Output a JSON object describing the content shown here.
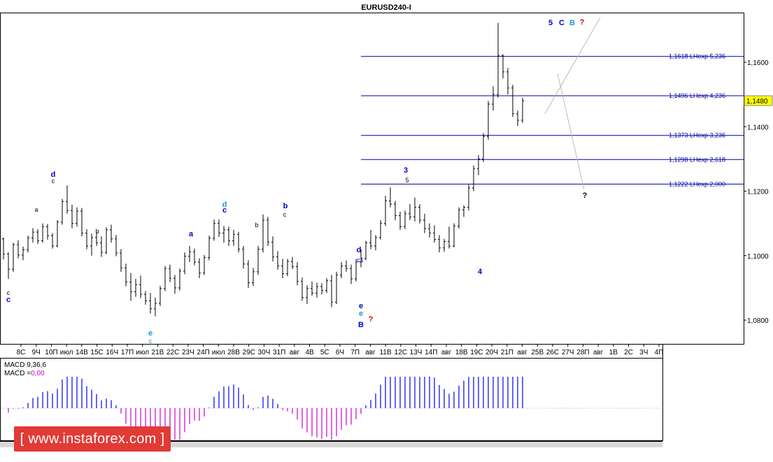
{
  "window": {
    "title": "EURUSD240-I"
  },
  "chart_data": {
    "type": "candlestick",
    "symbol": "EURUSD240-I",
    "price_axis": {
      "ticks": [
        "1,1600",
        "1,1400",
        "1,1200",
        "1,1000",
        "1,0800"
      ],
      "tick_values": [
        1.16,
        1.14,
        1.12,
        1.1,
        1.08
      ],
      "range": [
        1.073,
        1.178
      ]
    },
    "current_price": {
      "label": "1,1480",
      "value": 1.148
    },
    "fib_levels": [
      {
        "value": 1.1618,
        "label": "1,1618 LHexp 5,236"
      },
      {
        "value": 1.1496,
        "label": "1,1496 LHexp 4,236"
      },
      {
        "value": 1.1373,
        "label": "1,1373 LHexp 3,236"
      },
      {
        "value": 1.1298,
        "label": "1,1298 LHexp 2,618"
      },
      {
        "value": 1.1222,
        "label": "1,1222 LHexp 2,000"
      }
    ],
    "time_axis": [
      "8C",
      "9Ч",
      "10П",
      "июл",
      "14В",
      "15С",
      "16Ч",
      "17П",
      "июл",
      "21В",
      "22С",
      "23Ч",
      "24П",
      "июл",
      "28В",
      "29С",
      "30Ч",
      "31П",
      "авг",
      "4В",
      "5С",
      "6Ч",
      "7П",
      "авг",
      "11В",
      "12С",
      "13Ч",
      "14П",
      "авг",
      "18В",
      "19С",
      "20Ч",
      "21П",
      "авг",
      "25В",
      "26С",
      "27Ч",
      "28П",
      "авг",
      "1В",
      "2С",
      "3Ч",
      "4П"
    ],
    "ohlc_bars": [
      {
        "o": 1.1052,
        "h": 1.1056,
        "l": 1.0988,
        "c": 1.1005
      },
      {
        "o": 1.1005,
        "h": 1.101,
        "l": 1.0928,
        "c": 1.0958
      },
      {
        "o": 1.0958,
        "h": 1.104,
        "l": 1.095,
        "c": 1.1034
      },
      {
        "o": 1.1034,
        "h": 1.1048,
        "l": 1.0992,
        "c": 1.1002
      },
      {
        "o": 1.1002,
        "h": 1.1028,
        "l": 1.0986,
        "c": 1.1018
      },
      {
        "o": 1.1018,
        "h": 1.1062,
        "l": 1.101,
        "c": 1.1055
      },
      {
        "o": 1.1055,
        "h": 1.1085,
        "l": 1.104,
        "c": 1.1073
      },
      {
        "o": 1.1073,
        "h": 1.1082,
        "l": 1.1036,
        "c": 1.1046
      },
      {
        "o": 1.1046,
        "h": 1.11,
        "l": 1.104,
        "c": 1.109
      },
      {
        "o": 1.109,
        "h": 1.1098,
        "l": 1.105,
        "c": 1.1062
      },
      {
        "o": 1.1062,
        "h": 1.107,
        "l": 1.1022,
        "c": 1.103
      },
      {
        "o": 1.103,
        "h": 1.111,
        "l": 1.1026,
        "c": 1.1104
      },
      {
        "o": 1.1104,
        "h": 1.1176,
        "l": 1.1096,
        "c": 1.1168
      },
      {
        "o": 1.1168,
        "h": 1.1218,
        "l": 1.113,
        "c": 1.114
      },
      {
        "o": 1.114,
        "h": 1.1158,
        "l": 1.1085,
        "c": 1.11
      },
      {
        "o": 1.11,
        "h": 1.115,
        "l": 1.109,
        "c": 1.1138
      },
      {
        "o": 1.1138,
        "h": 1.1148,
        "l": 1.106,
        "c": 1.107
      },
      {
        "o": 1.107,
        "h": 1.1082,
        "l": 1.102,
        "c": 1.103
      },
      {
        "o": 1.103,
        "h": 1.1068,
        "l": 1.1,
        "c": 1.1056
      },
      {
        "o": 1.1056,
        "h": 1.1074,
        "l": 1.103,
        "c": 1.104
      },
      {
        "o": 1.104,
        "h": 1.106,
        "l": 1.0996,
        "c": 1.101
      },
      {
        "o": 1.101,
        "h": 1.1088,
        "l": 1.1004,
        "c": 1.108
      },
      {
        "o": 1.108,
        "h": 1.1096,
        "l": 1.104,
        "c": 1.1052
      },
      {
        "o": 1.1052,
        "h": 1.1064,
        "l": 1.0998,
        "c": 1.1008
      },
      {
        "o": 1.1008,
        "h": 1.102,
        "l": 1.095,
        "c": 1.0962
      },
      {
        "o": 1.0962,
        "h": 1.0975,
        "l": 1.0905,
        "c": 1.0918
      },
      {
        "o": 1.0918,
        "h": 1.0946,
        "l": 1.086,
        "c": 1.0888
      },
      {
        "o": 1.0888,
        "h": 1.0928,
        "l": 1.0872,
        "c": 1.091
      },
      {
        "o": 1.091,
        "h": 1.0938,
        "l": 1.0868,
        "c": 1.088
      },
      {
        "o": 1.088,
        "h": 1.089,
        "l": 1.0848,
        "c": 1.086
      },
      {
        "o": 1.086,
        "h": 1.0884,
        "l": 1.082,
        "c": 1.0835
      },
      {
        "o": 1.0835,
        "h": 1.087,
        "l": 1.0812,
        "c": 1.0852
      },
      {
        "o": 1.0852,
        "h": 1.0906,
        "l": 1.0844,
        "c": 1.0898
      },
      {
        "o": 1.0898,
        "h": 1.0968,
        "l": 1.089,
        "c": 1.096
      },
      {
        "o": 1.096,
        "h": 1.0972,
        "l": 1.0918,
        "c": 1.093
      },
      {
        "o": 1.093,
        "h": 1.094,
        "l": 1.0882,
        "c": 1.09
      },
      {
        "o": 1.09,
        "h": 1.096,
        "l": 1.0892,
        "c": 1.0952
      },
      {
        "o": 1.0952,
        "h": 1.101,
        "l": 1.0942,
        "c": 1.0998
      },
      {
        "o": 1.0998,
        "h": 1.103,
        "l": 1.098,
        "c": 1.1012
      },
      {
        "o": 1.1012,
        "h": 1.1022,
        "l": 1.097,
        "c": 1.098
      },
      {
        "o": 1.098,
        "h": 1.0992,
        "l": 1.093,
        "c": 1.0946
      },
      {
        "o": 1.0946,
        "h": 1.1002,
        "l": 1.094,
        "c": 1.0994
      },
      {
        "o": 1.0994,
        "h": 1.1062,
        "l": 1.0986,
        "c": 1.1054
      },
      {
        "o": 1.1054,
        "h": 1.1112,
        "l": 1.1046,
        "c": 1.11
      },
      {
        "o": 1.11,
        "h": 1.1112,
        "l": 1.1058,
        "c": 1.107
      },
      {
        "o": 1.107,
        "h": 1.1092,
        "l": 1.104,
        "c": 1.108
      },
      {
        "o": 1.108,
        "h": 1.109,
        "l": 1.103,
        "c": 1.1046
      },
      {
        "o": 1.1046,
        "h": 1.108,
        "l": 1.103,
        "c": 1.1066
      },
      {
        "o": 1.1066,
        "h": 1.1074,
        "l": 1.101,
        "c": 1.102
      },
      {
        "o": 1.102,
        "h": 1.103,
        "l": 1.096,
        "c": 1.0974
      },
      {
        "o": 1.0974,
        "h": 1.0986,
        "l": 1.09,
        "c": 1.0916
      },
      {
        "o": 1.0916,
        "h": 1.0962,
        "l": 1.0906,
        "c": 1.095
      },
      {
        "o": 1.095,
        "h": 1.103,
        "l": 1.094,
        "c": 1.102
      },
      {
        "o": 1.102,
        "h": 1.1128,
        "l": 1.101,
        "c": 1.111
      },
      {
        "o": 1.111,
        "h": 1.112,
        "l": 1.103,
        "c": 1.1042
      },
      {
        "o": 1.1042,
        "h": 1.106,
        "l": 1.0982,
        "c": 1.0996
      },
      {
        "o": 1.0996,
        "h": 1.1014,
        "l": 1.0956,
        "c": 1.0968
      },
      {
        "o": 1.0968,
        "h": 1.099,
        "l": 1.093,
        "c": 1.0944
      },
      {
        "o": 1.0944,
        "h": 1.099,
        "l": 1.0936,
        "c": 1.0982
      },
      {
        "o": 1.0982,
        "h": 1.0996,
        "l": 1.0958,
        "c": 1.0966
      },
      {
        "o": 1.0966,
        "h": 1.098,
        "l": 1.0908,
        "c": 1.092
      },
      {
        "o": 1.092,
        "h": 1.0932,
        "l": 1.086,
        "c": 1.087
      },
      {
        "o": 1.087,
        "h": 1.0908,
        "l": 1.085,
        "c": 1.0898
      },
      {
        "o": 1.0898,
        "h": 1.092,
        "l": 1.0876,
        "c": 1.0884
      },
      {
        "o": 1.0884,
        "h": 1.0916,
        "l": 1.087,
        "c": 1.0904
      },
      {
        "o": 1.0904,
        "h": 1.0914,
        "l": 1.088,
        "c": 1.0892
      },
      {
        "o": 1.0892,
        "h": 1.093,
        "l": 1.0884,
        "c": 1.0922
      },
      {
        "o": 1.0922,
        "h": 1.094,
        "l": 1.084,
        "c": 1.0856
      },
      {
        "o": 1.0856,
        "h": 1.095,
        "l": 1.085,
        "c": 1.094
      },
      {
        "o": 1.094,
        "h": 1.098,
        "l": 1.093,
        "c": 1.0968
      },
      {
        "o": 1.0968,
        "h": 1.0985,
        "l": 1.095,
        "c": 1.096
      },
      {
        "o": 1.096,
        "h": 1.0972,
        "l": 1.0912,
        "c": 1.0928
      },
      {
        "o": 1.0928,
        "h": 1.099,
        "l": 1.092,
        "c": 1.098
      },
      {
        "o": 1.098,
        "h": 1.102,
        "l": 1.0964,
        "c": 1.0992
      },
      {
        "o": 1.0992,
        "h": 1.1046,
        "l": 1.0986,
        "c": 1.104
      },
      {
        "o": 1.104,
        "h": 1.108,
        "l": 1.102,
        "c": 1.103
      },
      {
        "o": 1.103,
        "h": 1.1064,
        "l": 1.1016,
        "c": 1.1056
      },
      {
        "o": 1.1056,
        "h": 1.111,
        "l": 1.105,
        "c": 1.11
      },
      {
        "o": 1.11,
        "h": 1.1186,
        "l": 1.1092,
        "c": 1.117
      },
      {
        "o": 1.117,
        "h": 1.1212,
        "l": 1.115,
        "c": 1.116
      },
      {
        "o": 1.116,
        "h": 1.117,
        "l": 1.111,
        "c": 1.1124
      },
      {
        "o": 1.1124,
        "h": 1.1136,
        "l": 1.108,
        "c": 1.109
      },
      {
        "o": 1.109,
        "h": 1.114,
        "l": 1.1082,
        "c": 1.113
      },
      {
        "o": 1.113,
        "h": 1.116,
        "l": 1.111,
        "c": 1.112
      },
      {
        "o": 1.112,
        "h": 1.118,
        "l": 1.1106,
        "c": 1.115
      },
      {
        "o": 1.115,
        "h": 1.116,
        "l": 1.11,
        "c": 1.111
      },
      {
        "o": 1.111,
        "h": 1.113,
        "l": 1.107,
        "c": 1.1084
      },
      {
        "o": 1.1084,
        "h": 1.11,
        "l": 1.1056,
        "c": 1.107
      },
      {
        "o": 1.107,
        "h": 1.1094,
        "l": 1.104,
        "c": 1.105
      },
      {
        "o": 1.105,
        "h": 1.1064,
        "l": 1.101,
        "c": 1.1024
      },
      {
        "o": 1.1024,
        "h": 1.1052,
        "l": 1.1012,
        "c": 1.1044
      },
      {
        "o": 1.1044,
        "h": 1.109,
        "l": 1.1022,
        "c": 1.103
      },
      {
        "o": 1.103,
        "h": 1.11,
        "l": 1.1026,
        "c": 1.1092
      },
      {
        "o": 1.1092,
        "h": 1.115,
        "l": 1.1084,
        "c": 1.1142
      },
      {
        "o": 1.1142,
        "h": 1.1156,
        "l": 1.112,
        "c": 1.115
      },
      {
        "o": 1.115,
        "h": 1.122,
        "l": 1.114,
        "c": 1.121
      },
      {
        "o": 1.121,
        "h": 1.128,
        "l": 1.12,
        "c": 1.127
      },
      {
        "o": 1.127,
        "h": 1.1312,
        "l": 1.125,
        "c": 1.13
      },
      {
        "o": 1.13,
        "h": 1.138,
        "l": 1.129,
        "c": 1.137
      },
      {
        "o": 1.137,
        "h": 1.148,
        "l": 1.136,
        "c": 1.147
      },
      {
        "o": 1.147,
        "h": 1.1525,
        "l": 1.145,
        "c": 1.15
      },
      {
        "o": 1.15,
        "h": 1.1722,
        "l": 1.149,
        "c": 1.162
      },
      {
        "o": 1.162,
        "h": 1.1625,
        "l": 1.155,
        "c": 1.157
      },
      {
        "o": 1.157,
        "h": 1.1582,
        "l": 1.15,
        "c": 1.152
      },
      {
        "o": 1.152,
        "h": 1.153,
        "l": 1.143,
        "c": 1.144
      },
      {
        "o": 1.144,
        "h": 1.145,
        "l": 1.1402,
        "c": 1.142
      },
      {
        "o": 1.142,
        "h": 1.149,
        "l": 1.1412,
        "c": 1.148
      }
    ],
    "wave_labels": [
      {
        "t": "5",
        "color": "#0000cc"
      },
      {
        "t": "C",
        "color": "#0000cc"
      },
      {
        "t": "B",
        "color": "#1a9ad6"
      },
      {
        "t": "?",
        "color": "#e00000"
      },
      {
        "t": "3",
        "color": "#0000cc"
      },
      {
        "t": "5",
        "color": "#000000"
      },
      {
        "t": "d",
        "color": "#0000cc"
      },
      {
        "t": "c",
        "color": "#000000"
      },
      {
        "t": "d",
        "color": "#1a9ad6"
      },
      {
        "t": "c",
        "color": "#0000cc"
      },
      {
        "t": "b",
        "color": "#0000cc"
      },
      {
        "t": "c",
        "color": "#000000"
      },
      {
        "t": "a",
        "color": "#000000"
      },
      {
        "t": "b",
        "color": "#000000"
      },
      {
        "t": "a",
        "color": "#0000cc"
      },
      {
        "t": "b",
        "color": "#000000"
      },
      {
        "t": "d",
        "color": "#0000cc"
      },
      {
        "t": "c1",
        "color": "#0000cc"
      },
      {
        "t": "e",
        "color": "#0000cc"
      },
      {
        "t": "e",
        "color": "#1a9ad6"
      },
      {
        "t": "B",
        "color": "#0000cc"
      },
      {
        "t": "?",
        "color": "#e00000"
      },
      {
        "t": "c",
        "color": "#0000cc"
      },
      {
        "t": "c",
        "color": "#000000"
      },
      {
        "t": "e",
        "color": "#1a9ad6"
      },
      {
        "t": "c",
        "color": "#1a9ad6"
      },
      {
        "t": "4",
        "color": "#0000cc"
      },
      {
        "t": "?",
        "color": "#000000"
      }
    ],
    "indicator": {
      "name": "MACD",
      "params_label": "MACD 9,36,6",
      "value_label": "MACD =0,00",
      "value_color": "#cc00cc"
    }
  },
  "watermark": {
    "text": "[ www.instaforex.com ]"
  },
  "colors": {
    "bars": "#000000",
    "fib_line": "#0000aa",
    "macd_pos": "#0000ee",
    "macd_neg": "#cc00cc",
    "projection": "#bbbbbb",
    "logo_bg": "#e23a36"
  }
}
